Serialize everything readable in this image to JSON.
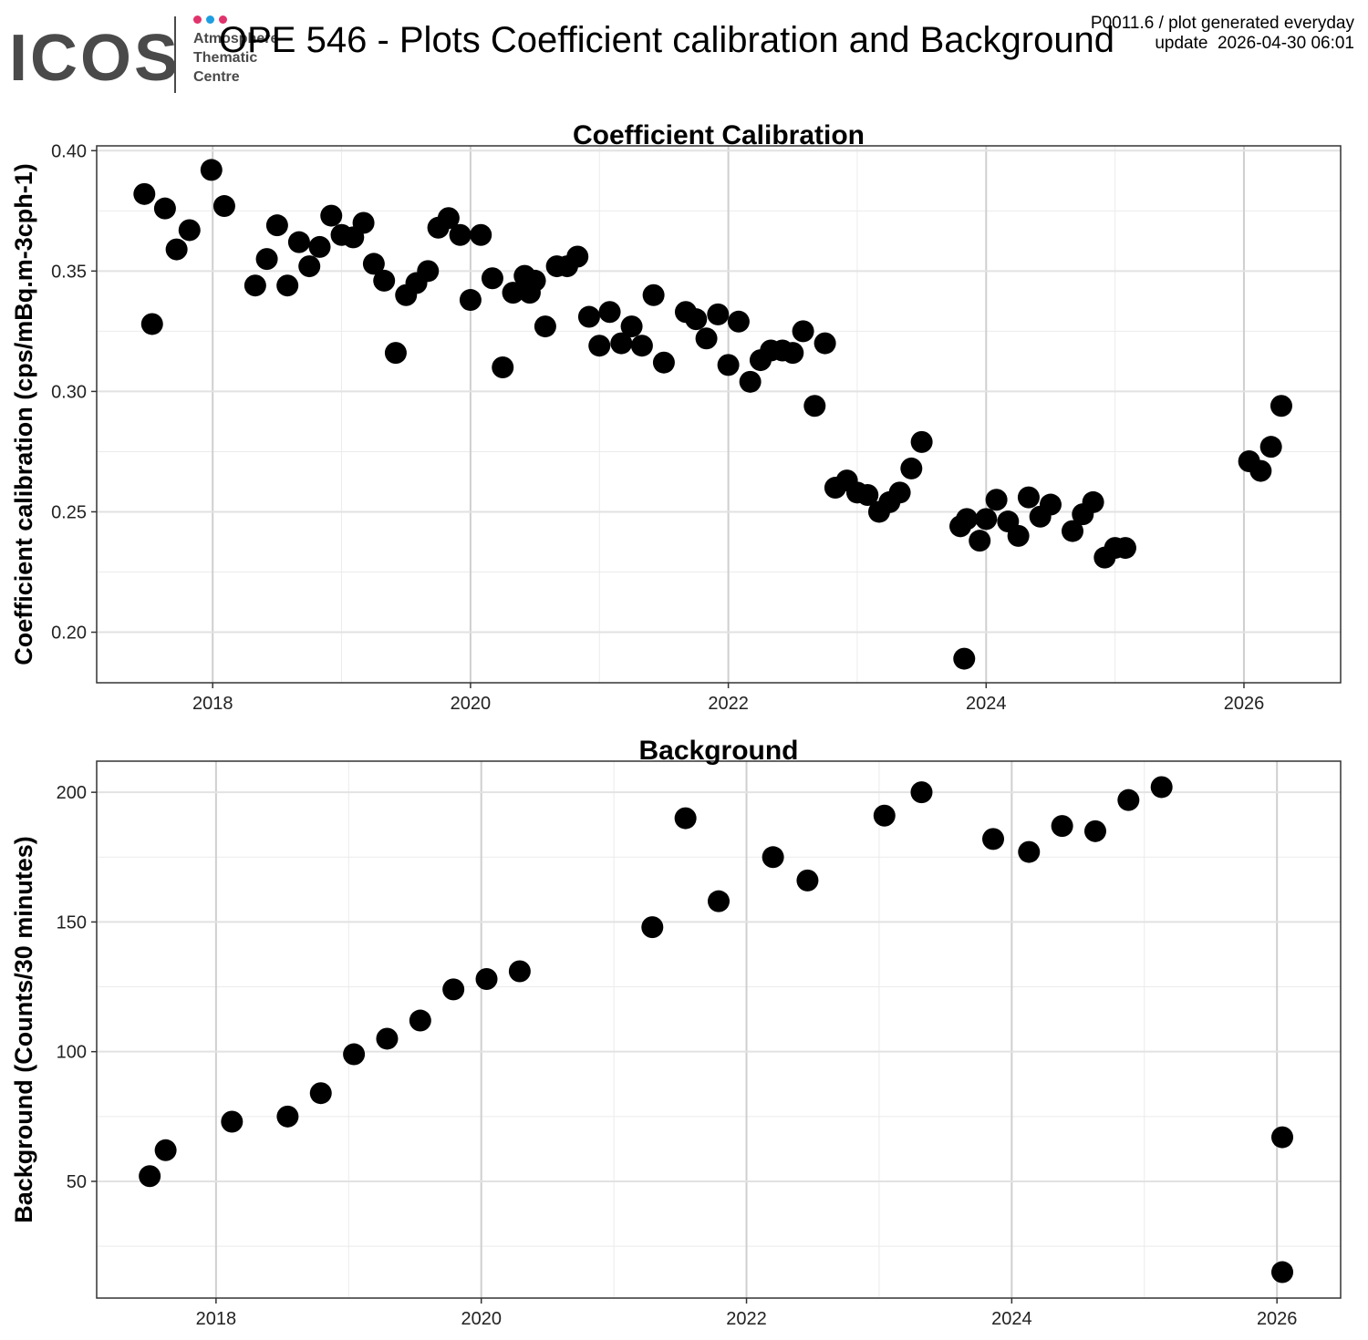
{
  "header": {
    "logo_text": "ICOS",
    "logo_sub": [
      "Atmosphere",
      "Thematic",
      "Centre"
    ],
    "logo_dot_colors": [
      "#e0336c",
      "#1e9ee0",
      "#e0336c"
    ],
    "title": "OPE 546 - Plots Coefficient calibration and Background",
    "meta_line1": "P0011.6 / plot generated everyday",
    "meta_line2": "update  2026-04-30 06:01"
  },
  "chart_data": [
    {
      "type": "scatter",
      "title": "Coefficient Calibration",
      "xlabel": "",
      "ylabel": "Coefficient calibration (cps/mBq.m-3cph-1)",
      "xlim": [
        2017.1,
        2026.75
      ],
      "ylim": [
        0.179,
        0.402
      ],
      "x_ticks": [
        2018,
        2020,
        2022,
        2024,
        2026
      ],
      "y_ticks": [
        0.2,
        0.25,
        0.3,
        0.35,
        0.4
      ],
      "y_tick_labels": [
        "0.20",
        "0.25",
        "0.30",
        "0.35",
        "0.40"
      ],
      "grid": true,
      "marker_color": "#000000",
      "x": [
        2017.47,
        2017.53,
        2017.63,
        2017.72,
        2017.82,
        2017.99,
        2018.09,
        2018.33,
        2018.42,
        2018.5,
        2018.58,
        2018.67,
        2018.75,
        2018.83,
        2018.92,
        2019.0,
        2019.09,
        2019.17,
        2019.25,
        2019.33,
        2019.42,
        2019.5,
        2019.58,
        2019.67,
        2019.75,
        2019.83,
        2019.92,
        2020.0,
        2020.08,
        2020.17,
        2020.25,
        2020.33,
        2020.42,
        2020.46,
        2020.5,
        2020.58,
        2020.67,
        2020.75,
        2020.83,
        2020.92,
        2021.0,
        2021.08,
        2021.17,
        2021.25,
        2021.33,
        2021.42,
        2021.5,
        2021.67,
        2021.75,
        2021.83,
        2021.92,
        2022.0,
        2022.08,
        2022.17,
        2022.25,
        2022.33,
        2022.42,
        2022.5,
        2022.58,
        2022.67,
        2022.75,
        2022.83,
        2022.92,
        2023.0,
        2023.08,
        2023.17,
        2023.25,
        2023.33,
        2023.42,
        2023.5,
        2023.8,
        2023.83,
        2023.85,
        2023.95,
        2024.0,
        2024.08,
        2024.17,
        2024.25,
        2024.33,
        2024.42,
        2024.5,
        2024.67,
        2024.75,
        2024.83,
        2024.92,
        2025.0,
        2025.08,
        2026.04,
        2026.13,
        2026.21,
        2026.29
      ],
      "y": [
        0.382,
        0.328,
        0.376,
        0.359,
        0.367,
        0.392,
        0.377,
        0.344,
        0.355,
        0.369,
        0.344,
        0.362,
        0.352,
        0.36,
        0.373,
        0.365,
        0.364,
        0.37,
        0.353,
        0.346,
        0.316,
        0.34,
        0.345,
        0.35,
        0.368,
        0.372,
        0.365,
        0.338,
        0.365,
        0.347,
        0.31,
        0.341,
        0.348,
        0.341,
        0.346,
        0.327,
        0.352,
        0.352,
        0.356,
        0.331,
        0.319,
        0.333,
        0.32,
        0.327,
        0.319,
        0.34,
        0.312,
        0.333,
        0.33,
        0.322,
        0.332,
        0.311,
        0.329,
        0.304,
        0.313,
        0.317,
        0.317,
        0.316,
        0.325,
        0.294,
        0.32,
        0.26,
        0.263,
        0.258,
        0.257,
        0.25,
        0.254,
        0.258,
        0.268,
        0.279,
        0.244,
        0.189,
        0.247,
        0.238,
        0.247,
        0.255,
        0.246,
        0.24,
        0.256,
        0.248,
        0.253,
        0.242,
        0.249,
        0.254,
        0.231,
        0.235,
        0.235,
        0.271,
        0.267,
        0.277,
        0.294
      ]
    },
    {
      "type": "scatter",
      "title": "Background",
      "xlabel": "",
      "ylabel": "Background (Counts/30 minutes)",
      "xlim": [
        2017.1,
        2026.48
      ],
      "ylim": [
        5,
        212
      ],
      "x_ticks": [
        2018,
        2020,
        2022,
        2024,
        2026
      ],
      "y_ticks": [
        50,
        100,
        150,
        200
      ],
      "y_tick_labels": [
        "50",
        "100",
        "150",
        "200"
      ],
      "grid": true,
      "marker_color": "#000000",
      "x": [
        2017.5,
        2017.62,
        2018.12,
        2018.54,
        2018.79,
        2019.04,
        2019.29,
        2019.54,
        2019.79,
        2020.04,
        2020.29,
        2021.29,
        2021.54,
        2021.79,
        2022.2,
        2022.46,
        2023.04,
        2023.32,
        2023.86,
        2024.13,
        2024.38,
        2024.63,
        2024.88,
        2025.13,
        2026.04,
        2026.04
      ],
      "y": [
        52,
        62,
        73,
        75,
        84,
        99,
        105,
        112,
        124,
        128,
        131,
        148,
        190,
        158,
        175,
        166,
        191,
        200,
        182,
        177,
        187,
        185,
        197,
        202,
        67,
        15
      ]
    }
  ]
}
